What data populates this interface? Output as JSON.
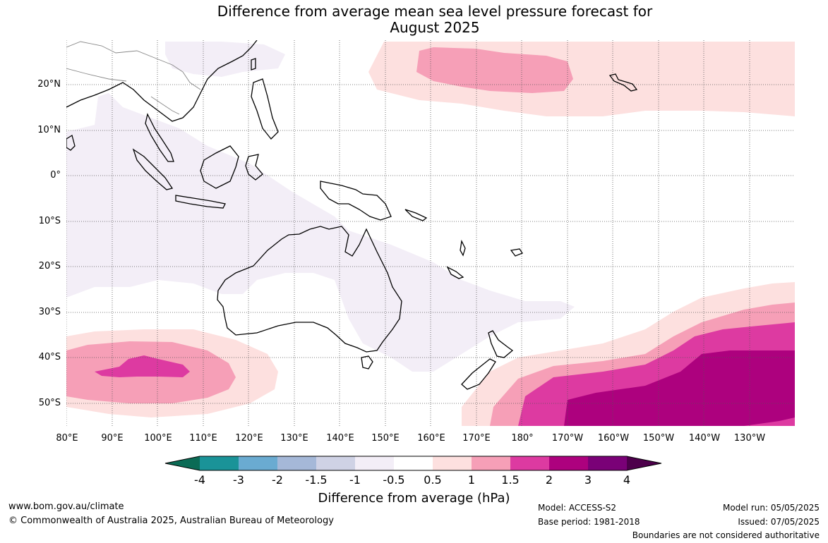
{
  "title": {
    "line1": "Difference from average mean sea level pressure forecast for",
    "line2": "August 2025"
  },
  "lat_labels": [
    "20°N",
    "10°N",
    "0°",
    "10°S",
    "20°S",
    "30°S",
    "40°S",
    "50°S"
  ],
  "lon_labels": [
    "80°E",
    "90°E",
    "100°E",
    "110°E",
    "120°E",
    "130°E",
    "140°E",
    "150°E",
    "160°E",
    "170°E",
    "180°",
    "170°W",
    "160°W",
    "150°W",
    "140°W",
    "130°W"
  ],
  "colorbar": {
    "ticks": [
      "-4",
      "-3",
      "-2",
      "-1.5",
      "-1",
      "-0.5",
      "0.5",
      "1",
      "1.5",
      "2",
      "3",
      "4"
    ],
    "colors": [
      "#0b6b55",
      "#1a9398",
      "#6aabd1",
      "#a5b8d8",
      "#cfd2e5",
      "#f3eef7",
      "#ffffff",
      "#fde0df",
      "#f69fb7",
      "#dd3aa1",
      "#ad017e",
      "#7a0177",
      "#4d004b"
    ],
    "label": "Difference from average (hPa)"
  },
  "footer": {
    "site": "www.bom.gov.au/climate",
    "copyright": "© Commonwealth of Australia 2025, Australian Bureau of Meteorology",
    "model": "Model: ACCESS-S2",
    "base_period": "Base period: 1981-2018",
    "model_run": "Model run: 05/05/2025",
    "issued": "Issued: 07/05/2025",
    "boundaries": "Boundaries are not considered authoritative"
  }
}
